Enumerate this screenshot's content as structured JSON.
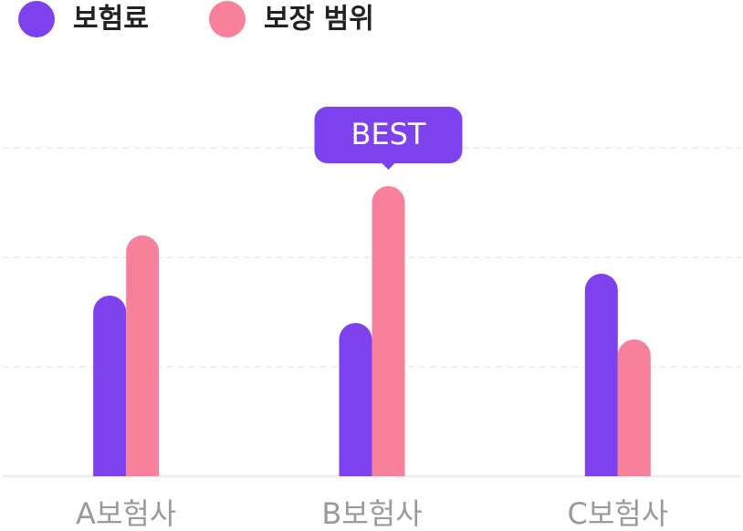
{
  "chart_data": {
    "type": "bar",
    "categories": [
      "A보험사",
      "B보험사",
      "C보험사"
    ],
    "series": [
      {
        "name": "보험료",
        "color": "#7d41ee",
        "values": [
          1.65,
          1.4,
          1.85
        ]
      },
      {
        "name": "보장 범위",
        "color": "#f7809b",
        "values": [
          2.2,
          2.65,
          1.25
        ]
      }
    ],
    "annotation": "BEST",
    "ylim": [
      0,
      4
    ],
    "yticks": [
      0,
      1,
      2,
      3
    ],
    "grid": true
  }
}
